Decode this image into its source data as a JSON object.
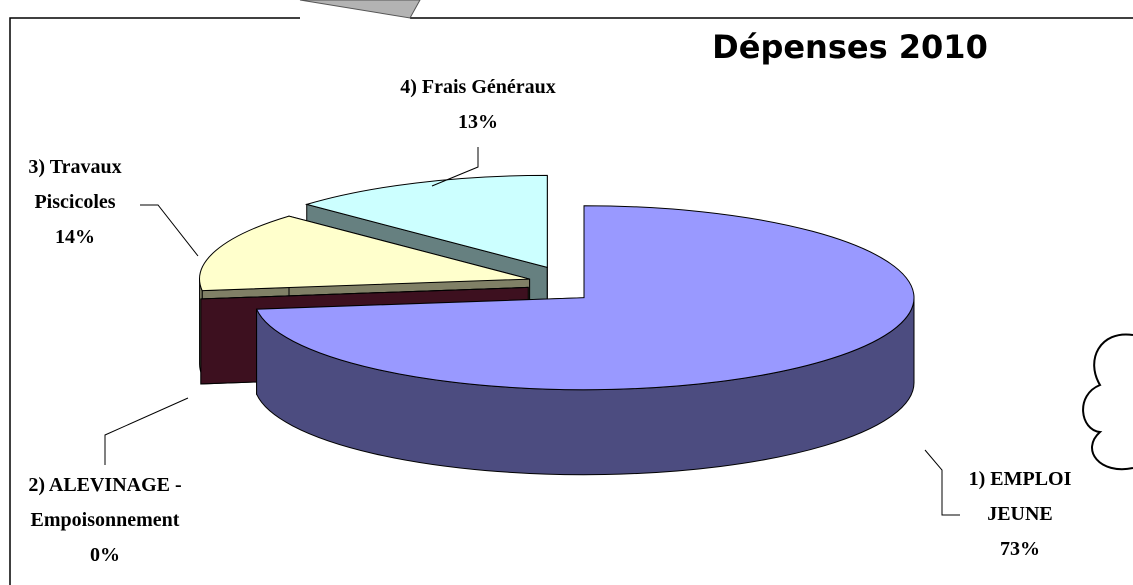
{
  "chart_data": {
    "type": "pie",
    "title": "Dépenses 2010",
    "categories": [
      "1) EMPLOI JEUNE",
      "2) ALEVINAGE - Empoisonnement",
      "3) Travaux Piscicoles",
      "4) Frais Généraux"
    ],
    "values": [
      73,
      0,
      14,
      13
    ],
    "value_labels": [
      "73%",
      "0%",
      "14%",
      "13%"
    ],
    "colors": [
      "#9999ff",
      "#7a1f3d",
      "#ffffcc",
      "#ccffff"
    ]
  }
}
